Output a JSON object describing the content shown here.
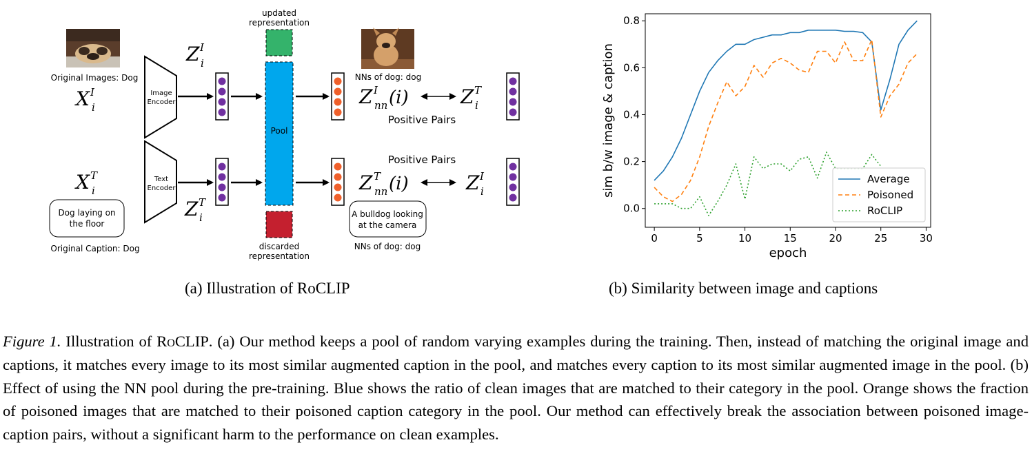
{
  "diagram": {
    "orig_images_label": "Original Images: Dog",
    "orig_caption_label": "Original Caption: Dog",
    "image_encoder_label": [
      "Image",
      "Encoder"
    ],
    "text_encoder_label": [
      "Text",
      "Encoder"
    ],
    "pool_label": "Pool",
    "updated_label": [
      "updated",
      "representation"
    ],
    "discarded_label": [
      "discarded",
      "representation"
    ],
    "nn_dog_label": "NNs of dog: dog",
    "positive_pairs": "Positive Pairs",
    "orig_caption_text": [
      "Dog laying on",
      "the floor"
    ],
    "nn_caption_text": [
      "A bulldog looking",
      "at the camera"
    ],
    "math": {
      "x_i_I": {
        "base": "X",
        "sup": "I",
        "sub": "i"
      },
      "x_i_T": {
        "base": "X",
        "sup": "T",
        "sub": "i"
      },
      "z_i_I": {
        "base": "Z",
        "sup": "I",
        "sub": "i"
      },
      "z_i_T": {
        "base": "Z",
        "sup": "T",
        "sub": "i"
      },
      "z_nn_I": {
        "base": "Z",
        "sup": "I",
        "sub": "nn",
        "arg": "(i)"
      },
      "z_nn_T": {
        "base": "Z",
        "sup": "T",
        "sub": "nn",
        "arg": "(i)"
      }
    },
    "colors": {
      "pool": "#00a7ed",
      "updated": "#34b36b",
      "discarded": "#c4202f",
      "encoder_dot": "#7030a0",
      "nn_dot": "#f0602b"
    }
  },
  "chart_data": {
    "type": "line",
    "xlabel": "epoch",
    "ylabel": "sim b/w image & caption",
    "xlim": [
      -1,
      30.5
    ],
    "ylim": [
      -0.08,
      0.83
    ],
    "xticks": [
      0,
      5,
      10,
      15,
      20,
      25,
      30
    ],
    "yticks": [
      0.0,
      0.2,
      0.4,
      0.6,
      0.8
    ],
    "ytick_labels": [
      "0.0",
      "0.2",
      "0.4",
      "0.6",
      "0.8"
    ],
    "grid": false,
    "legend_position": "lower-right",
    "x": [
      0,
      1,
      2,
      3,
      4,
      5,
      6,
      7,
      8,
      9,
      10,
      11,
      12,
      13,
      14,
      15,
      16,
      17,
      18,
      19,
      20,
      21,
      22,
      23,
      24,
      25,
      26,
      27,
      28,
      29
    ],
    "series": [
      {
        "name": "Average",
        "color": "#1f77b4",
        "style": "solid",
        "values": [
          0.12,
          0.16,
          0.22,
          0.3,
          0.4,
          0.5,
          0.58,
          0.63,
          0.67,
          0.7,
          0.7,
          0.72,
          0.73,
          0.74,
          0.74,
          0.75,
          0.75,
          0.76,
          0.76,
          0.76,
          0.76,
          0.755,
          0.755,
          0.75,
          0.71,
          0.42,
          0.55,
          0.7,
          0.76,
          0.8
        ]
      },
      {
        "name": "Poisoned",
        "color": "#ff7f0e",
        "style": "dashed",
        "values": [
          0.09,
          0.05,
          0.03,
          0.06,
          0.12,
          0.22,
          0.35,
          0.45,
          0.54,
          0.48,
          0.52,
          0.61,
          0.56,
          0.62,
          0.64,
          0.62,
          0.59,
          0.58,
          0.67,
          0.67,
          0.62,
          0.71,
          0.63,
          0.63,
          0.72,
          0.39,
          0.48,
          0.53,
          0.62,
          0.66
        ]
      },
      {
        "name": "RoCLIP",
        "color": "#2ca02c",
        "style": "dotted",
        "values": [
          0.02,
          0.02,
          0.02,
          0.0,
          0.0,
          0.05,
          -0.03,
          0.03,
          0.1,
          0.19,
          0.04,
          0.22,
          0.17,
          0.19,
          0.19,
          0.16,
          0.21,
          0.22,
          0.13,
          0.24,
          0.17,
          0.17,
          0.17,
          0.17,
          0.23,
          0.18,
          null,
          null,
          null,
          null
        ]
      }
    ]
  },
  "captions": {
    "sub_a": "(a) Illustration of RoCLIP",
    "sub_b": "(b) Similarity between image and captions",
    "figure_label": "Figure 1.",
    "fig_pre": " Illustration of ",
    "fig_name": "RoCLIP",
    "fig_text": ". (a) Our method keeps a pool of random varying examples during the training. Then, instead of matching the original image and captions, it matches every image to its most similar augmented caption in the pool, and matches every caption to its most similar augmented image in the pool. (b) Effect of using the NN pool during the pre-training. Blue shows the ratio of clean images that are matched to their category in the pool. Orange shows the fraction of poisoned images that are matched to their poisoned caption category in the pool. Our method can effectively break the association between poisoned image-caption pairs, without a significant harm to the performance on clean examples."
  }
}
